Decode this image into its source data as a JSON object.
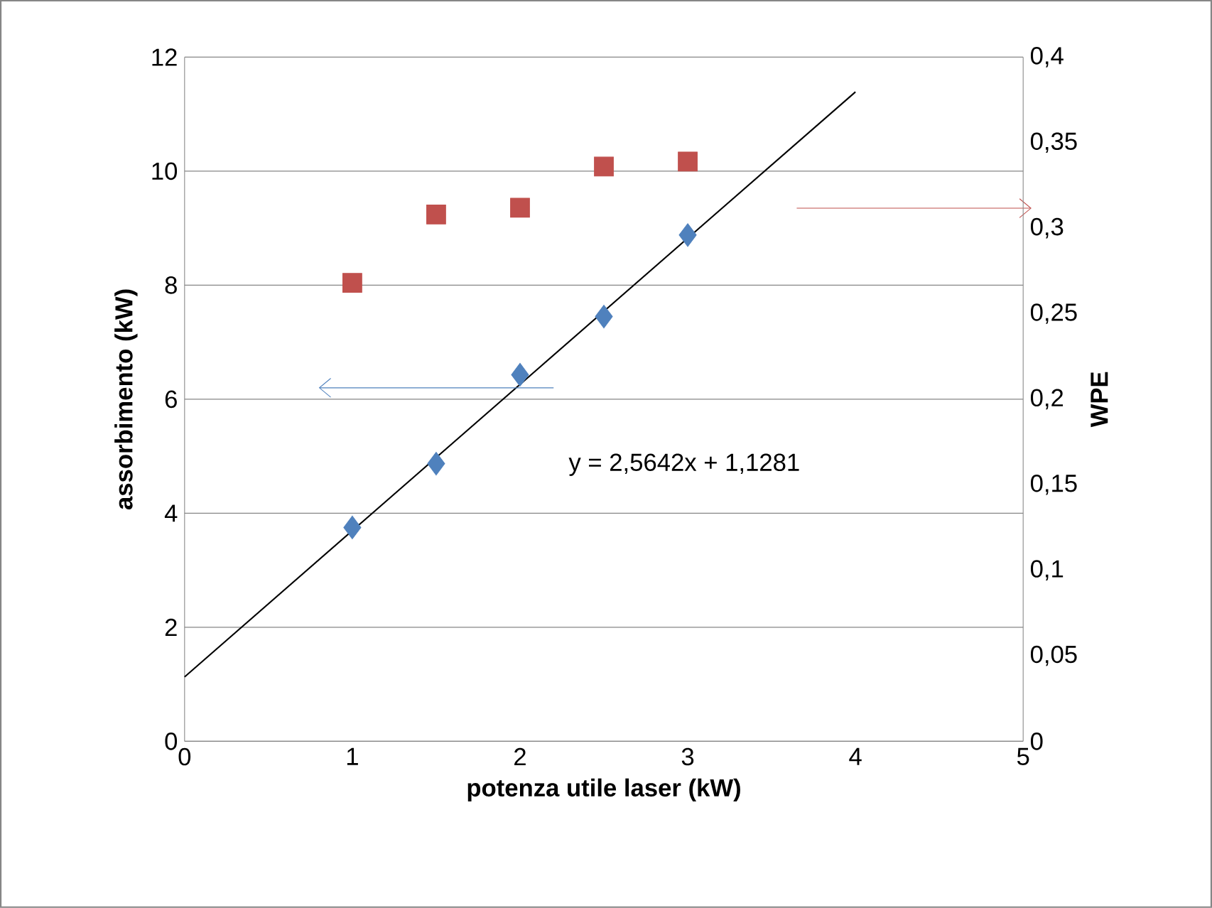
{
  "chart_data": {
    "type": "scatter",
    "xlabel": "potenza utile laser (kW)",
    "ylabel": "assorbimento (kW)",
    "y2label": "WPE",
    "xlim": [
      0,
      5
    ],
    "xticks": [
      0,
      1,
      2,
      3,
      4,
      5
    ],
    "ylim": [
      0,
      12
    ],
    "yticks": [
      0,
      2,
      4,
      6,
      8,
      10,
      12
    ],
    "y2lim": [
      0,
      0.4
    ],
    "y2ticks": [
      {
        "value": 0,
        "label": "0"
      },
      {
        "value": 0.05,
        "label": "0,05"
      },
      {
        "value": 0.1,
        "label": "0,1"
      },
      {
        "value": 0.15,
        "label": "0,15"
      },
      {
        "value": 0.2,
        "label": "0,2"
      },
      {
        "value": 0.25,
        "label": "0,25"
      },
      {
        "value": 0.3,
        "label": "0,3"
      },
      {
        "value": 0.35,
        "label": "0,35"
      },
      {
        "value": 0.4,
        "label": "0,4"
      }
    ],
    "grid": "y",
    "annotations": [
      "y = 2,5642x + 1,1281"
    ],
    "series": [
      {
        "color": "#4f81bd",
        "marker": "diamond",
        "x": [
          1,
          1.5,
          2,
          2.5,
          3
        ],
        "values": [
          3.75,
          4.87,
          6.43,
          7.45,
          8.88
        ]
      },
      {
        "color": "#c0504d",
        "marker": "square",
        "axis": "y2",
        "x": [
          1,
          1.5,
          2,
          2.5,
          3
        ],
        "values": [
          0.268,
          0.308,
          0.312,
          0.336,
          0.339
        ]
      },
      {
        "type": "line",
        "color": "#000000",
        "marker": "none",
        "x": [
          0,
          4
        ],
        "values": [
          1.13,
          11.39
        ]
      }
    ]
  }
}
